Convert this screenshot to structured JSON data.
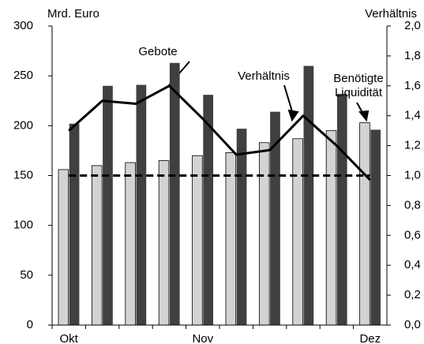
{
  "chart_data": {
    "type": "bar",
    "y_label": "Mrd. Euro",
    "y2_label": "Verhältnis",
    "categories": [
      "Okt",
      null,
      null,
      null,
      "Nov",
      null,
      null,
      null,
      null,
      "Dez"
    ],
    "series": [
      {
        "name": "Benötigte Liquidität",
        "color": "#d3d3d3",
        "values": [
          156,
          160,
          163,
          165,
          170,
          173,
          183,
          187,
          195,
          203
        ]
      },
      {
        "name": "Gebote",
        "color": "#404040",
        "values": [
          202,
          240,
          241,
          263,
          231,
          197,
          214,
          260,
          232,
          196
        ]
      },
      {
        "name": "Verhältnis",
        "color": "#000000",
        "axis": "y2",
        "values": [
          1.3,
          1.5,
          1.48,
          1.6,
          1.38,
          1.14,
          1.17,
          1.4,
          1.2,
          0.97
        ]
      }
    ],
    "reference_y2": 1,
    "ylim": [
      0,
      300
    ],
    "yticks": [
      0,
      50,
      100,
      150,
      200,
      250,
      300
    ],
    "y2lim": [
      0,
      2
    ],
    "y2ticks": [
      {
        "value": 0,
        "label": "0,0"
      },
      {
        "value": 0.2,
        "label": "0,2"
      },
      {
        "value": 0.4,
        "label": "0,4"
      },
      {
        "value": 0.6,
        "label": "0,6"
      },
      {
        "value": 0.8,
        "label": "0,8"
      },
      {
        "value": 1,
        "label": "1,0"
      },
      {
        "value": 1.2,
        "label": "1,2"
      },
      {
        "value": 1.4,
        "label": "1,4"
      },
      {
        "value": 1.6,
        "label": "1,6"
      },
      {
        "value": 1.8,
        "label": "1,8"
      },
      {
        "value": 2,
        "label": "2,0"
      }
    ],
    "grid": false
  }
}
